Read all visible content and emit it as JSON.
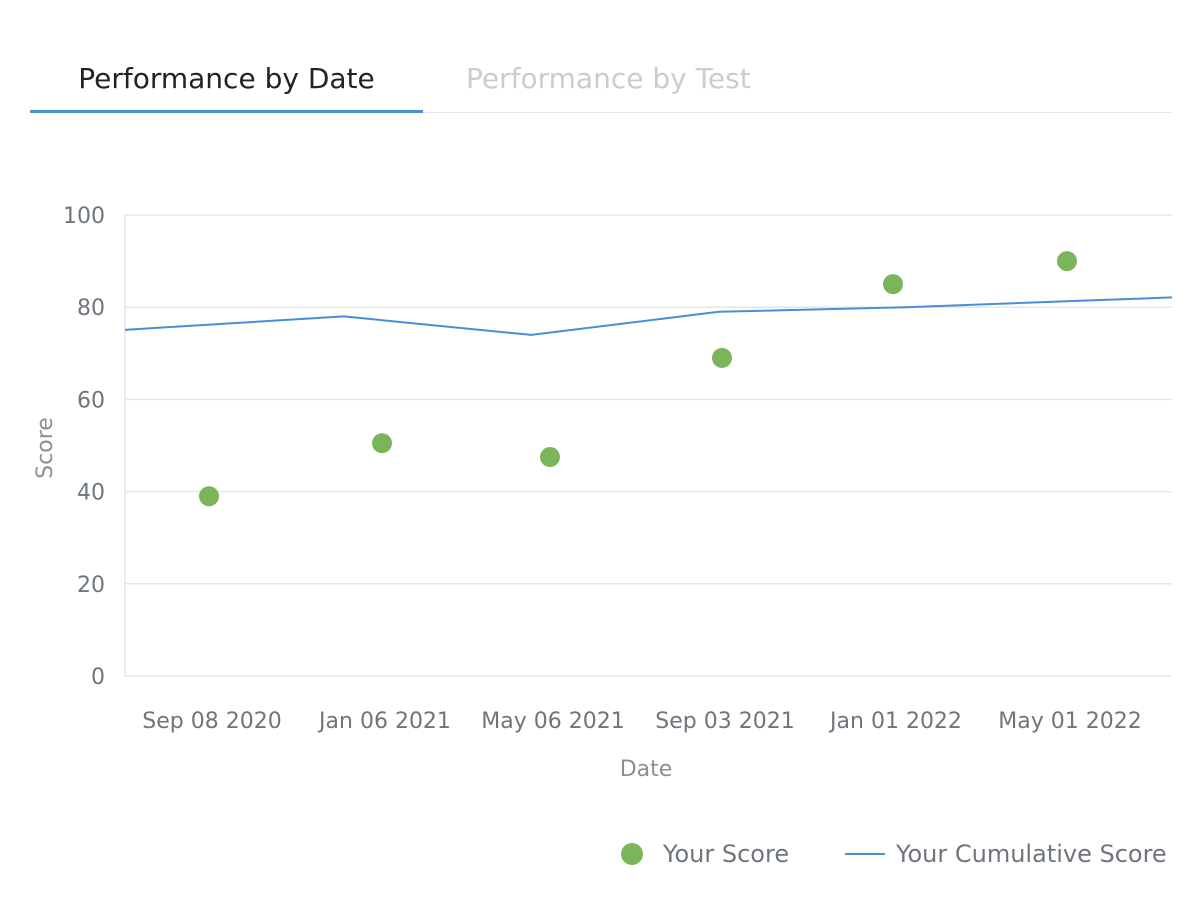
{
  "tabs": [
    {
      "label": "Performance by Date",
      "active": true
    },
    {
      "label": "Performance by Test",
      "active": false
    }
  ],
  "colors": {
    "accent": "#4a90d9",
    "score_point": "#7ab55c",
    "line": "#4a8fd6",
    "grid": "#e3e6ea"
  },
  "chart_data": {
    "type": "line",
    "xlabel": "Date",
    "ylabel": "Score",
    "ylim": [
      0,
      100
    ],
    "yticks": [
      0,
      20,
      40,
      60,
      80,
      100
    ],
    "xtick_labels": [
      "Sep 08 2020",
      "Jan 06 2021",
      "May 06 2021",
      "Sep 03 2021",
      "Jan 01 2022",
      "May 01 2022"
    ],
    "grid": true,
    "legend_position": "bottom-right",
    "series": [
      {
        "name": "Your Score",
        "type": "scatter",
        "color": "#7ab55c",
        "points": [
          {
            "x": "2020-09-08",
            "y": 39
          },
          {
            "x": "2021-01-06",
            "y": 50.5
          },
          {
            "x": "2021-05-06",
            "y": 47.5
          },
          {
            "x": "2021-09-03",
            "y": 69
          },
          {
            "x": "2022-01-01",
            "y": 85
          },
          {
            "x": "2022-05-01",
            "y": 90
          }
        ]
      },
      {
        "name": "Your Cumulative Score",
        "type": "line",
        "color": "#4a8fd6",
        "points": [
          {
            "x": "2020-09-08",
            "y": 75.5
          },
          {
            "x": "2021-01-06",
            "y": 78
          },
          {
            "x": "2021-05-06",
            "y": 74
          },
          {
            "x": "2021-09-03",
            "y": 79
          },
          {
            "x": "2022-01-01",
            "y": 80
          },
          {
            "x": "2022-05-01",
            "y": 81.5
          }
        ]
      }
    ]
  }
}
